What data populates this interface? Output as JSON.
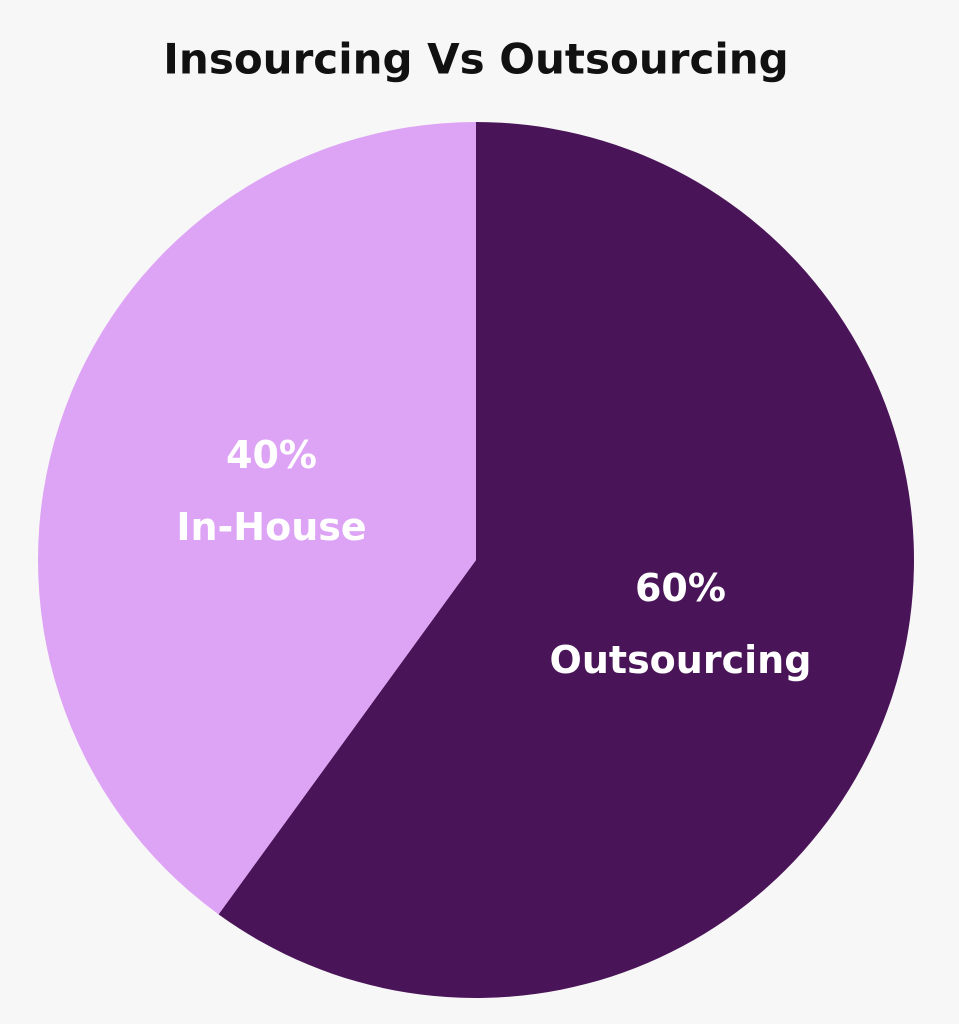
{
  "chart_data": {
    "type": "pie",
    "title": "Insourcing Vs Outsourcing",
    "categories": [
      "Outsourcing",
      "In-House"
    ],
    "values": [
      60,
      40
    ],
    "value_labels": [
      "60%",
      "40%"
    ],
    "colors": [
      "#4a1558",
      "#dda3f5"
    ]
  }
}
